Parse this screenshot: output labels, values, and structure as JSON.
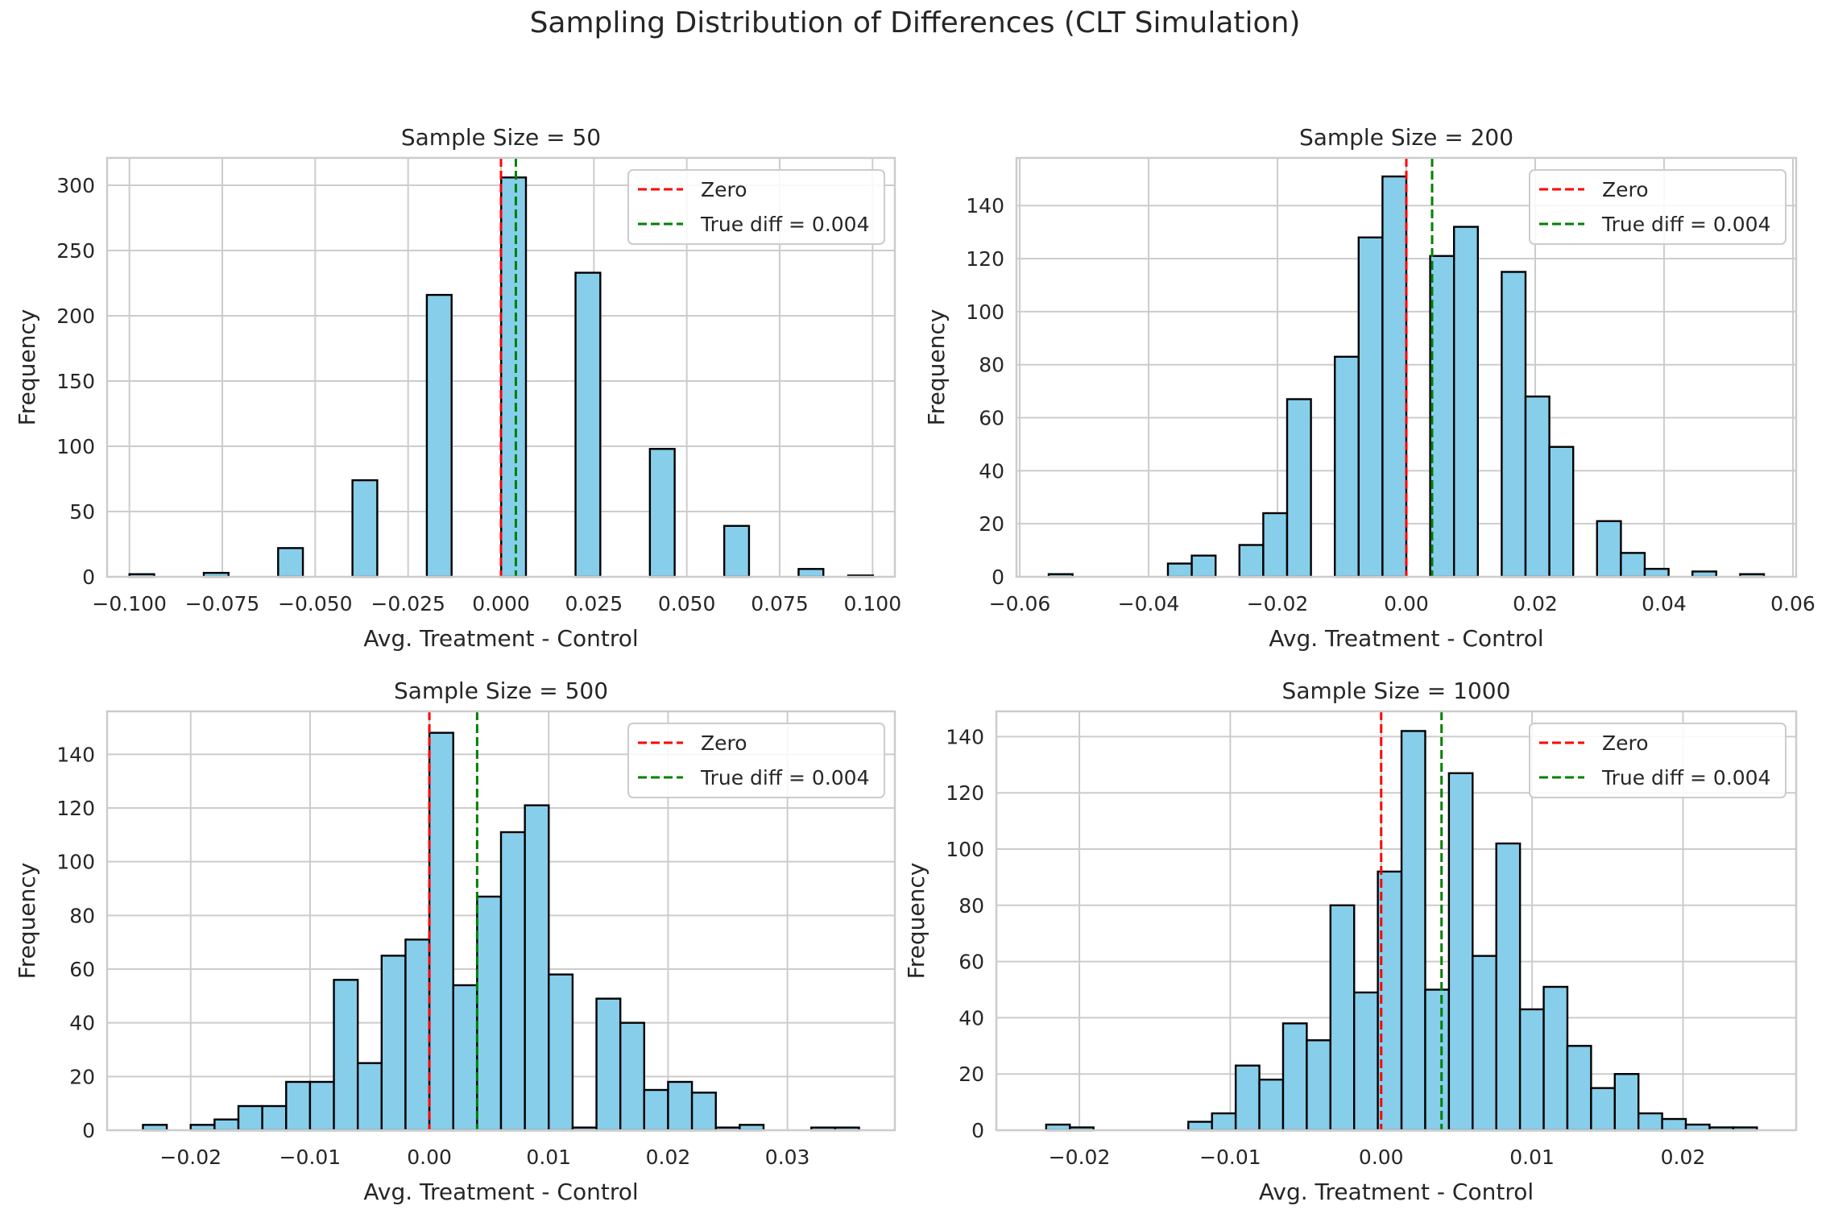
{
  "suptitle": "Sampling Distribution of Differences (CLT Simulation)",
  "colors": {
    "bar_fill": "#87ceeb",
    "bar_edge": "#000000",
    "zero_line": "#ff0000",
    "true_line": "#008000",
    "grid": "#cccccc",
    "axes_edge": "#cccccc"
  },
  "chart_data": [
    {
      "type": "bar",
      "title": "Sample Size = 50",
      "xlabel": "Avg. Treatment - Control",
      "ylabel": "Frequency",
      "xlim": [
        -0.106,
        0.106
      ],
      "ylim": [
        0,
        321
      ],
      "xticks": [
        -0.1,
        -0.075,
        -0.05,
        -0.025,
        0,
        0.025,
        0.05,
        0.075,
        0.1
      ],
      "xtick_labels": [
        "−0.100",
        "−0.075",
        "−0.050",
        "−0.025",
        "0.000",
        "0.025",
        "0.050",
        "0.075",
        "0.100"
      ],
      "yticks": [
        0,
        50,
        100,
        150,
        200,
        250,
        300
      ],
      "ytick_labels": [
        "0",
        "50",
        "100",
        "150",
        "200",
        "250",
        "300"
      ],
      "bin_start": -0.1,
      "bin_width": 0.00667,
      "counts": [
        2,
        0,
        0,
        3,
        0,
        0,
        22,
        0,
        0,
        74,
        0,
        0,
        216,
        0,
        0,
        306,
        0,
        0,
        233,
        0,
        0,
        98,
        0,
        0,
        39,
        0,
        0,
        6,
        0,
        1
      ],
      "vlines": [
        {
          "x": 0,
          "label": "Zero"
        },
        {
          "x": 0.004,
          "label": "True diff = 0.004"
        }
      ],
      "legend": "top-right"
    },
    {
      "type": "bar",
      "title": "Sample Size = 200",
      "xlabel": "Avg. Treatment - Control",
      "ylabel": "Frequency",
      "xlim": [
        -0.0605,
        0.0605
      ],
      "ylim": [
        0,
        158
      ],
      "xticks": [
        -0.06,
        -0.04,
        -0.02,
        0,
        0.02,
        0.04,
        0.06
      ],
      "xtick_labels": [
        "−0.06",
        "−0.04",
        "−0.02",
        "0.00",
        "0.02",
        "0.04",
        "0.06"
      ],
      "yticks": [
        0,
        20,
        40,
        60,
        80,
        100,
        120,
        140
      ],
      "ytick_labels": [
        "0",
        "20",
        "40",
        "60",
        "80",
        "100",
        "120",
        "140"
      ],
      "bin_start": -0.0555,
      "bin_width": 0.0037,
      "counts": [
        1,
        0,
        0,
        0,
        0,
        5,
        8,
        0,
        12,
        24,
        67,
        0,
        83,
        128,
        151,
        0,
        121,
        132,
        0,
        115,
        68,
        49,
        0,
        21,
        9,
        3,
        0,
        2,
        0,
        1
      ],
      "vlines": [
        {
          "x": 0,
          "label": "Zero"
        },
        {
          "x": 0.004,
          "label": "True diff = 0.004"
        }
      ],
      "legend": "top-right"
    },
    {
      "type": "bar",
      "title": "Sample Size = 500",
      "xlabel": "Avg. Treatment - Control",
      "ylabel": "Frequency",
      "xlim": [
        -0.027,
        0.039
      ],
      "ylim": [
        0,
        156
      ],
      "xticks": [
        -0.02,
        -0.01,
        0,
        0.01,
        0.02,
        0.03
      ],
      "xtick_labels": [
        "−0.02",
        "−0.01",
        "0.00",
        "0.01",
        "0.02",
        "0.03"
      ],
      "yticks": [
        0,
        20,
        40,
        60,
        80,
        100,
        120,
        140
      ],
      "ytick_labels": [
        "0",
        "20",
        "40",
        "60",
        "80",
        "100",
        "120",
        "140"
      ],
      "bin_start": -0.024,
      "bin_width": 0.002,
      "counts": [
        2,
        0,
        2,
        4,
        9,
        9,
        18,
        18,
        56,
        25,
        65,
        71,
        148,
        54,
        87,
        111,
        121,
        58,
        1,
        49,
        40,
        15,
        18,
        14,
        1,
        2,
        0,
        0,
        1,
        1
      ],
      "vlines": [
        {
          "x": 0,
          "label": "Zero"
        },
        {
          "x": 0.004,
          "label": "True diff = 0.004"
        }
      ],
      "legend": "top-right"
    },
    {
      "type": "bar",
      "title": "Sample Size = 1000",
      "xlabel": "Avg. Treatment - Control",
      "ylabel": "Frequency",
      "xlim": [
        -0.0255,
        0.0275
      ],
      "ylim": [
        0,
        149
      ],
      "xticks": [
        -0.02,
        -0.01,
        0,
        0.01,
        0.02
      ],
      "xtick_labels": [
        "−0.02",
        "−0.01",
        "0.00",
        "0.01",
        "0.02"
      ],
      "yticks": [
        0,
        20,
        40,
        60,
        80,
        100,
        120,
        140
      ],
      "ytick_labels": [
        "0",
        "20",
        "40",
        "60",
        "80",
        "100",
        "120",
        "140"
      ],
      "bin_start": -0.0222,
      "bin_width": 0.00157,
      "counts": [
        2,
        1,
        0,
        0,
        0,
        0,
        3,
        6,
        23,
        18,
        38,
        32,
        80,
        49,
        92,
        142,
        50,
        127,
        62,
        102,
        43,
        51,
        30,
        15,
        20,
        6,
        4,
        2,
        1,
        1
      ],
      "vlines": [
        {
          "x": 0,
          "label": "Zero"
        },
        {
          "x": 0.004,
          "label": "True diff = 0.004"
        }
      ],
      "legend": "top-right"
    }
  ]
}
